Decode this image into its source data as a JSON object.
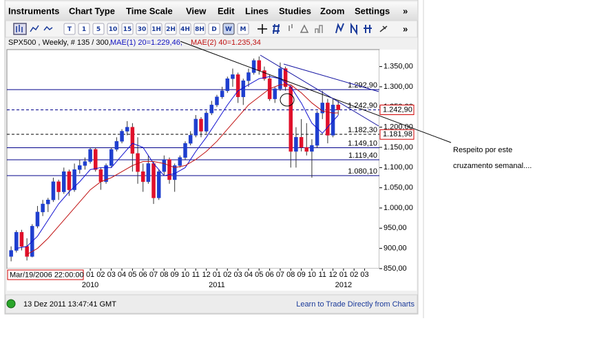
{
  "menu": [
    "Instruments",
    "Chart Type",
    "Time Scale",
    "View",
    "Edit",
    "Lines",
    "Studies",
    "Zoom",
    "Settings",
    "»"
  ],
  "toolbar": {
    "buttons": [
      "T",
      "1",
      "5",
      "10",
      "15",
      "30",
      "1H",
      "2H",
      "4H",
      "8H",
      "D",
      "W",
      "M"
    ],
    "selected": "W",
    "more": "»"
  },
  "chart_header": {
    "instrument": "SPX500 , Weekly, # 135 / 300,",
    "mae1": "MAE(1) 20=1.229,46,",
    "mae2": "MAE(2) 40=1.235,34"
  },
  "chart_data": {
    "type": "candlestick",
    "x": [
      -7.5,
      -7,
      -6.5,
      -6,
      -5.5,
      -5,
      -4.5,
      -4,
      -3.5,
      -3,
      -2.5,
      -2,
      -1.5,
      -1,
      -0.5,
      0,
      0.5,
      1,
      1.5,
      2,
      2.5,
      3,
      3.5,
      4,
      4.5,
      5,
      5.5,
      6,
      6.5,
      7,
      7.5,
      8,
      8.5,
      9,
      9.5,
      10,
      10.5,
      11,
      11.5,
      12,
      12.5,
      13,
      13.5,
      14,
      14.5,
      15,
      15.5,
      16,
      16.5,
      17,
      17.5,
      18,
      18.5,
      19,
      19.5,
      20,
      20.5,
      21,
      21.5,
      22,
      22.5,
      23,
      23.5
    ],
    "open": [
      880,
      895,
      940,
      905,
      880,
      955,
      990,
      1010,
      1020,
      1065,
      1040,
      1090,
      1045,
      1095,
      1105,
      1115,
      1145,
      1095,
      1065,
      1105,
      1145,
      1165,
      1190,
      1200,
      1135,
      1090,
      1065,
      1110,
      1025,
      1090,
      1120,
      1070,
      1105,
      1125,
      1160,
      1180,
      1220,
      1190,
      1235,
      1255,
      1275,
      1290,
      1320,
      1330,
      1275,
      1315,
      1335,
      1365,
      1340,
      1320,
      1270,
      1295,
      1345,
      1300,
      1140,
      1175,
      1150,
      1140,
      1155,
      1235,
      1260,
      1180,
      1255
    ],
    "high": [
      905,
      945,
      946,
      925,
      960,
      1005,
      1020,
      1025,
      1075,
      1070,
      1100,
      1095,
      1110,
      1120,
      1125,
      1150,
      1150,
      1100,
      1110,
      1150,
      1175,
      1195,
      1215,
      1210,
      1175,
      1110,
      1130,
      1115,
      1095,
      1130,
      1125,
      1110,
      1130,
      1165,
      1190,
      1230,
      1225,
      1240,
      1265,
      1280,
      1300,
      1325,
      1345,
      1335,
      1320,
      1345,
      1370,
      1375,
      1350,
      1330,
      1300,
      1360,
      1350,
      1305,
      1200,
      1220,
      1210,
      1170,
      1240,
      1290,
      1270,
      1270,
      1265
    ],
    "low": [
      868,
      890,
      895,
      870,
      878,
      950,
      980,
      990,
      1015,
      1020,
      1035,
      1030,
      1040,
      1085,
      1095,
      1110,
      1090,
      1045,
      1060,
      1100,
      1140,
      1160,
      1180,
      1090,
      1060,
      1040,
      1060,
      1010,
      1020,
      1080,
      1060,
      1040,
      1100,
      1120,
      1155,
      1175,
      1175,
      1185,
      1230,
      1250,
      1270,
      1285,
      1300,
      1260,
      1255,
      1300,
      1330,
      1330,
      1315,
      1265,
      1260,
      1290,
      1290,
      1100,
      1100,
      1140,
      1130,
      1075,
      1150,
      1220,
      1160,
      1175,
      1230
    ],
    "close": [
      895,
      940,
      905,
      880,
      955,
      990,
      1010,
      1020,
      1065,
      1040,
      1090,
      1045,
      1095,
      1105,
      1115,
      1145,
      1095,
      1065,
      1105,
      1145,
      1165,
      1190,
      1200,
      1135,
      1090,
      1065,
      1110,
      1025,
      1090,
      1120,
      1070,
      1105,
      1125,
      1160,
      1180,
      1220,
      1190,
      1235,
      1255,
      1275,
      1290,
      1320,
      1330,
      1275,
      1315,
      1335,
      1365,
      1340,
      1320,
      1270,
      1295,
      1345,
      1300,
      1140,
      1175,
      1150,
      1140,
      1155,
      1235,
      1260,
      1180,
      1255,
      1243
    ],
    "up_color": "#1f3fcf",
    "down_color": "#e0102a",
    "averages": [
      {
        "color": "#1010d0",
        "x": [
          -7,
          -6,
          -5,
          -4,
          -3,
          -2,
          -1,
          0,
          1,
          2,
          3,
          4,
          5,
          6,
          7,
          8,
          9,
          10,
          11,
          12,
          13,
          14,
          15,
          16,
          17,
          18,
          19,
          20,
          21,
          22,
          23,
          23.5
        ],
        "values": [
          900,
          905,
          930,
          970,
          1010,
          1040,
          1065,
          1095,
          1100,
          1100,
          1130,
          1160,
          1150,
          1110,
          1080,
          1085,
          1100,
          1140,
          1175,
          1215,
          1255,
          1290,
          1305,
          1320,
          1325,
          1320,
          1300,
          1260,
          1210,
          1185,
          1215,
          1229.46
        ]
      },
      {
        "color": "#c01010",
        "x": [
          -6,
          -5,
          -4,
          -3,
          -2,
          -1,
          0,
          1,
          2,
          3,
          4,
          5,
          6,
          7,
          8,
          9,
          10,
          11,
          12,
          13,
          14,
          15,
          16,
          17,
          18,
          19,
          20,
          21,
          22,
          23,
          23.5
        ],
        "values": [
          885,
          900,
          925,
          955,
          985,
          1015,
          1045,
          1065,
          1075,
          1090,
          1105,
          1115,
          1115,
          1110,
          1100,
          1105,
          1120,
          1140,
          1165,
          1195,
          1225,
          1255,
          1275,
          1295,
          1305,
          1305,
          1285,
          1260,
          1240,
          1235,
          1235.34
        ]
      }
    ],
    "levels": [
      {
        "value": 1292.9,
        "label": "1.292,90",
        "color": "#00008b",
        "dashed": false
      },
      {
        "value": 1242.9,
        "label": "1.242,90",
        "color": "#00008b",
        "dashed": true
      },
      {
        "value": 1182.3,
        "label": "1.182,30",
        "color": "#000000",
        "dashed": true
      },
      {
        "value": 1149.1,
        "label": "1.149,10",
        "color": "#00008b",
        "dashed": false
      },
      {
        "value": 1119.4,
        "label": "1.119,40",
        "color": "#00008b",
        "dashed": false
      },
      {
        "value": 1080.1,
        "label": "1.080,10",
        "color": "#00008b",
        "dashed": false
      }
    ],
    "price_boxes": [
      {
        "value": 1242.9,
        "label": "1.242,90"
      },
      {
        "value": 1181.98,
        "label": "1.181,98"
      }
    ],
    "ylim": [
      850,
      1392
    ],
    "yticks": [
      {
        "value": 850,
        "label": "850,00"
      },
      {
        "value": 900,
        "label": "900,00"
      },
      {
        "value": 950,
        "label": "950,00"
      },
      {
        "value": 1000,
        "label": "1.000,00"
      },
      {
        "value": 1050,
        "label": "1.050,00"
      },
      {
        "value": 1100,
        "label": "1.100,00"
      },
      {
        "value": 1150,
        "label": "1.150,00"
      },
      {
        "value": 1200,
        "label": "1.200,00"
      },
      {
        "value": 1250,
        "label": "1.250,00"
      },
      {
        "value": 1300,
        "label": "1.300,00"
      },
      {
        "value": 1350,
        "label": "1.350,00"
      }
    ],
    "xlim": [
      -7.9,
      27.4
    ],
    "xticks": [
      {
        "value": 0,
        "label": "01"
      },
      {
        "value": 1,
        "label": "02"
      },
      {
        "value": 2,
        "label": "03"
      },
      {
        "value": 3,
        "label": "04"
      },
      {
        "value": 4,
        "label": "05"
      },
      {
        "value": 5,
        "label": "06"
      },
      {
        "value": 6,
        "label": "07"
      },
      {
        "value": 7,
        "label": "08"
      },
      {
        "value": 8,
        "label": "09"
      },
      {
        "value": 9,
        "label": "10"
      },
      {
        "value": 10,
        "label": "11"
      },
      {
        "value": 11,
        "label": "12"
      },
      {
        "value": 12,
        "label": "01"
      },
      {
        "value": 13,
        "label": "02"
      },
      {
        "value": 14,
        "label": "03"
      },
      {
        "value": 15,
        "label": "04"
      },
      {
        "value": 16,
        "label": "05"
      },
      {
        "value": 17,
        "label": "06"
      },
      {
        "value": 18,
        "label": "07"
      },
      {
        "value": 19,
        "label": "08"
      },
      {
        "value": 20,
        "label": "09"
      },
      {
        "value": 21,
        "label": "10"
      },
      {
        "value": 22,
        "label": "11"
      },
      {
        "value": 23,
        "label": "12"
      },
      {
        "value": 24,
        "label": "01"
      },
      {
        "value": 25,
        "label": "02"
      },
      {
        "value": 26,
        "label": "03"
      }
    ],
    "year_ticks": [
      {
        "value": 0,
        "label": "2010"
      },
      {
        "value": 12,
        "label": "2011"
      },
      {
        "value": 24,
        "label": "2012"
      }
    ],
    "start_date": "Mar/19/2006 22:00:00"
  },
  "status": {
    "time": "13 Dez 2011 13:47:41 GMT",
    "link": "Learn to Trade Directly from Charts"
  },
  "annotation": [
    "Respeito por este",
    "cruzamento semanal...."
  ]
}
